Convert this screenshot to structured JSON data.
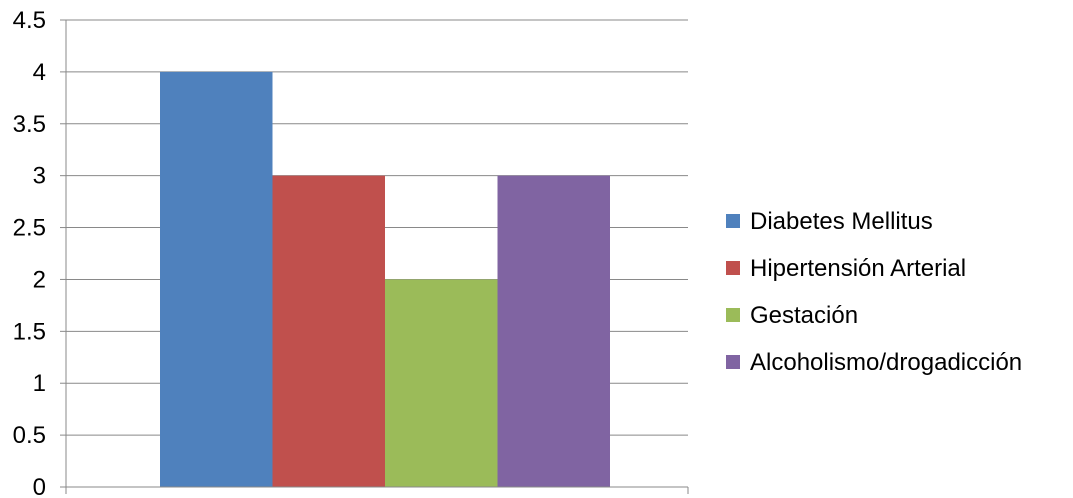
{
  "chart_data": {
    "type": "bar",
    "categories": [
      ""
    ],
    "series": [
      {
        "name": "Diabetes Mellitus",
        "values": [
          4
        ],
        "color": "#4F81BD"
      },
      {
        "name": "Hipertensión Arterial",
        "values": [
          3
        ],
        "color": "#C0504D"
      },
      {
        "name": "Gestación",
        "values": [
          2
        ],
        "color": "#9BBB59"
      },
      {
        "name": "Alcoholismo/drogadicción",
        "values": [
          3
        ],
        "color": "#8064A2"
      }
    ],
    "title": "",
    "xlabel": "",
    "ylabel": "",
    "ylim": [
      0,
      4.5
    ],
    "yticks": [
      "0",
      "0.5",
      "1",
      "1.5",
      "2",
      "2.5",
      "3",
      "3.5",
      "4",
      "4.5"
    ],
    "grid": true,
    "legend_position": "right"
  }
}
